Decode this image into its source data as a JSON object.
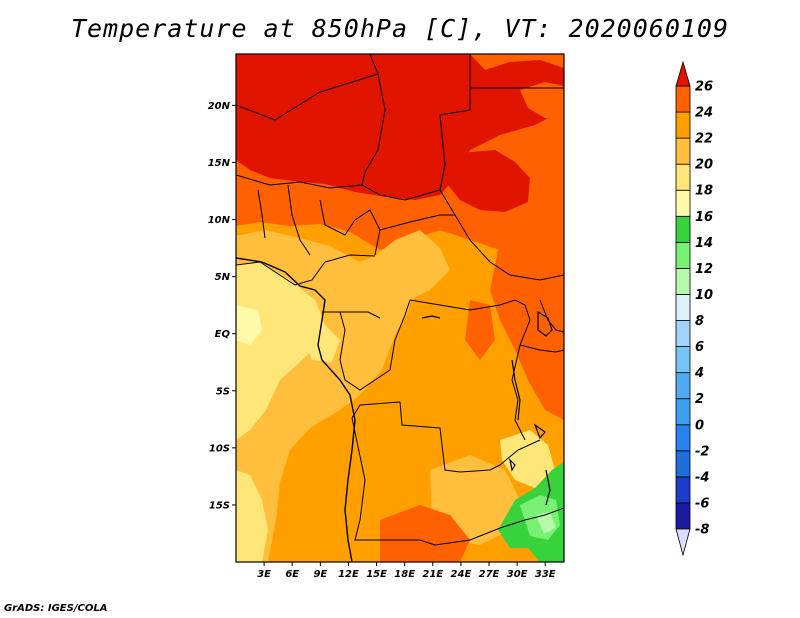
{
  "title": "Temperature at 850hPa [C], VT: 2020060109",
  "credit": "GrADS: IGES/COLA",
  "map": {
    "lon_range": [
      0,
      35
    ],
    "lat_range": [
      -20,
      24.5
    ],
    "lon_ticks": [
      {
        "value": 3,
        "label": "3E"
      },
      {
        "value": 6,
        "label": "6E"
      },
      {
        "value": 9,
        "label": "9E"
      },
      {
        "value": 12,
        "label": "12E"
      },
      {
        "value": 15,
        "label": "15E"
      },
      {
        "value": 18,
        "label": "18E"
      },
      {
        "value": 21,
        "label": "21E"
      },
      {
        "value": 24,
        "label": "24E"
      },
      {
        "value": 27,
        "label": "27E"
      },
      {
        "value": 30,
        "label": "30E"
      },
      {
        "value": 33,
        "label": "33E"
      }
    ],
    "lat_ticks": [
      {
        "value": 20,
        "label": "20N"
      },
      {
        "value": 15,
        "label": "15N"
      },
      {
        "value": 10,
        "label": "10N"
      },
      {
        "value": 5,
        "label": "5N"
      },
      {
        "value": 0,
        "label": "EQ"
      },
      {
        "value": -5,
        "label": "5S"
      },
      {
        "value": -10,
        "label": "10S"
      },
      {
        "value": -15,
        "label": "15S"
      }
    ]
  },
  "colorbar": {
    "levels": [
      {
        "value": -8,
        "label": "-8",
        "color": "#1c1ca0"
      },
      {
        "value": -6,
        "label": "-6",
        "color": "#1e3cc8"
      },
      {
        "value": -4,
        "label": "-4",
        "color": "#1e6edc"
      },
      {
        "value": -2,
        "label": "-2",
        "color": "#2882f0"
      },
      {
        "value": 0,
        "label": "0",
        "color": "#3ca0f0"
      },
      {
        "value": 2,
        "label": "2",
        "color": "#50aaf0"
      },
      {
        "value": 4,
        "label": "4",
        "color": "#78c3f5"
      },
      {
        "value": 6,
        "label": "6",
        "color": "#a0d2fa"
      },
      {
        "value": 8,
        "label": "8",
        "color": "#dcf0fa"
      },
      {
        "value": 10,
        "label": "10",
        "color": "#b4faaa"
      },
      {
        "value": 12,
        "label": "12",
        "color": "#78f073"
      },
      {
        "value": 14,
        "label": "14",
        "color": "#37d23c"
      },
      {
        "value": 16,
        "label": "16",
        "color": "#fffaaa"
      },
      {
        "value": 18,
        "label": "18",
        "color": "#ffe678"
      },
      {
        "value": 20,
        "label": "20",
        "color": "#ffbe3c"
      },
      {
        "value": 22,
        "label": "22",
        "color": "#ffa000"
      },
      {
        "value": 24,
        "label": "24",
        "color": "#ff6000"
      },
      {
        "value": 26,
        "label": "26",
        "color": "#e11400"
      }
    ],
    "under_color": "#dcdcff",
    "over_color": "#e11400"
  }
}
